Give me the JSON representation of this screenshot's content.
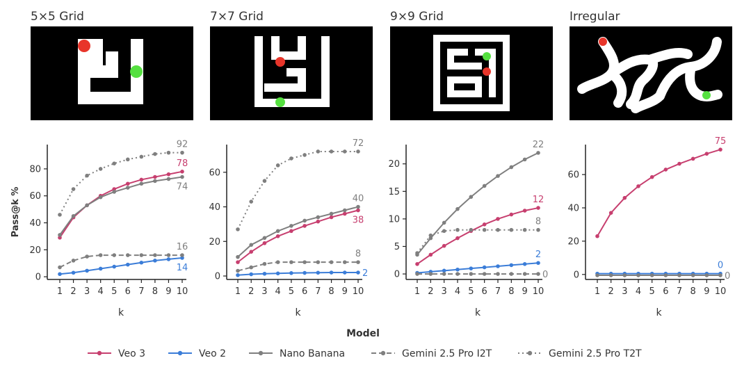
{
  "panels": [
    {
      "title": "5×5 Grid"
    },
    {
      "title": "7×7 Grid"
    },
    {
      "title": "9×9 Grid"
    },
    {
      "title": "Irregular"
    }
  ],
  "colors": {
    "veo3": "#c73f6f",
    "veo2": "#3b7dd8",
    "nano": "#7f7f7f",
    "gemini": "#7f7f7f",
    "start": "#e8352a",
    "goal": "#55e040"
  },
  "shared": {
    "ylabel": "Pass@k %",
    "xlabel": "k",
    "legend_title": "Model"
  },
  "legend": [
    {
      "name": "Veo 3",
      "key": "veo3",
      "dash": "solid"
    },
    {
      "name": "Veo 2",
      "key": "veo2",
      "dash": "solid"
    },
    {
      "name": "Nano Banana",
      "key": "nano",
      "dash": "solid"
    },
    {
      "name": "Gemini 2.5 Pro I2T",
      "key": "gemini",
      "dash": "dashed"
    },
    {
      "name": "Gemini 2.5 Pro T2T",
      "key": "gemini",
      "dash": "dotted"
    }
  ],
  "chart_data": [
    {
      "type": "line",
      "title": "5×5 Grid",
      "xlabel": "k",
      "ylabel": "Pass@k %",
      "x": [
        1,
        2,
        3,
        4,
        5,
        6,
        7,
        8,
        9,
        10
      ],
      "ylim": [
        -2,
        98
      ],
      "yticks": [
        0,
        20,
        40,
        60,
        80
      ],
      "series": [
        {
          "name": "Veo 3",
          "key": "veo3",
          "dash": "solid",
          "values": [
            29,
            44,
            53,
            60,
            65,
            69,
            72,
            74,
            76,
            78
          ],
          "end_label": "78"
        },
        {
          "name": "Veo 2",
          "key": "veo2",
          "dash": "solid",
          "values": [
            2,
            3,
            4.5,
            6,
            7.5,
            9,
            10.5,
            12,
            13,
            14
          ],
          "end_label": "14"
        },
        {
          "name": "Nano Banana",
          "key": "nano",
          "dash": "solid",
          "values": [
            31,
            45,
            53,
            59,
            63,
            66,
            69,
            71,
            72.5,
            74
          ],
          "end_label": "74"
        },
        {
          "name": "Gemini 2.5 Pro I2T",
          "key": "gemini",
          "dash": "dashed",
          "values": [
            7,
            12,
            15,
            16,
            16,
            16,
            16,
            16,
            16,
            16
          ],
          "end_label": "16"
        },
        {
          "name": "Gemini 2.5 Pro T2T",
          "key": "gemini",
          "dash": "dotted",
          "values": [
            46,
            65,
            75,
            80,
            84,
            87,
            89,
            91,
            92,
            92
          ],
          "end_label": "92"
        }
      ]
    },
    {
      "type": "line",
      "title": "7×7 Grid",
      "xlabel": "k",
      "ylabel": "",
      "x": [
        1,
        2,
        3,
        4,
        5,
        6,
        7,
        8,
        9,
        10
      ],
      "ylim": [
        -2,
        76
      ],
      "yticks": [
        0,
        20,
        40,
        60
      ],
      "series": [
        {
          "name": "Veo 3",
          "key": "veo3",
          "dash": "solid",
          "values": [
            8,
            14,
            19,
            23,
            26,
            29,
            31.5,
            34,
            36,
            38
          ],
          "end_label": "38"
        },
        {
          "name": "Veo 2",
          "key": "veo2",
          "dash": "solid",
          "values": [
            0.5,
            1,
            1.3,
            1.5,
            1.7,
            1.8,
            1.9,
            2,
            2,
            2
          ],
          "end_label": "2"
        },
        {
          "name": "Nano Banana",
          "key": "nano",
          "dash": "solid",
          "values": [
            11,
            18,
            22,
            26,
            29,
            32,
            34,
            36,
            38,
            40
          ],
          "end_label": "40"
        },
        {
          "name": "Gemini 2.5 Pro I2T",
          "key": "gemini",
          "dash": "dashed",
          "values": [
            3,
            5,
            7,
            8,
            8,
            8,
            8,
            8,
            8,
            8
          ],
          "end_label": "8"
        },
        {
          "name": "Gemini 2.5 Pro T2T",
          "key": "gemini",
          "dash": "dotted",
          "values": [
            27,
            43,
            55,
            64,
            68,
            70,
            72,
            72,
            72,
            72
          ],
          "end_label": "72"
        }
      ]
    },
    {
      "type": "line",
      "title": "9×9 Grid",
      "xlabel": "k",
      "ylabel": "",
      "x": [
        1,
        2,
        3,
        4,
        5,
        6,
        7,
        8,
        9,
        10
      ],
      "ylim": [
        -1,
        23.5
      ],
      "yticks": [
        0,
        5,
        10,
        15,
        20
      ],
      "series": [
        {
          "name": "Veo 3",
          "key": "veo3",
          "dash": "solid",
          "values": [
            1.8,
            3.5,
            5.1,
            6.5,
            7.8,
            9,
            10,
            10.8,
            11.5,
            12
          ],
          "end_label": "12"
        },
        {
          "name": "Veo 2",
          "key": "veo2",
          "dash": "solid",
          "values": [
            0.2,
            0.4,
            0.6,
            0.8,
            1,
            1.2,
            1.4,
            1.6,
            1.8,
            2
          ],
          "end_label": "2"
        },
        {
          "name": "Nano Banana",
          "key": "nano",
          "dash": "solid",
          "values": [
            3.5,
            6.5,
            9.3,
            11.8,
            14,
            16,
            17.8,
            19.4,
            20.8,
            22
          ],
          "end_label": "22"
        },
        {
          "name": "Gemini 2.5 Pro I2T",
          "key": "gemini",
          "dash": "dashed",
          "values": [
            0,
            0,
            0,
            0,
            0,
            0,
            0,
            0,
            0,
            0
          ],
          "end_label": "0"
        },
        {
          "name": "Gemini 2.5 Pro T2T",
          "key": "gemini",
          "dash": "dotted",
          "values": [
            3.8,
            7,
            7.8,
            8,
            8,
            8,
            8,
            8,
            8,
            8
          ],
          "end_label": "8"
        }
      ]
    },
    {
      "type": "line",
      "title": "Irregular",
      "xlabel": "k",
      "ylabel": "",
      "x": [
        1,
        2,
        3,
        4,
        5,
        6,
        7,
        8,
        9,
        10
      ],
      "ylim": [
        -3,
        78
      ],
      "yticks": [
        0,
        20,
        40,
        60
      ],
      "series": [
        {
          "name": "Veo 3",
          "key": "veo3",
          "dash": "solid",
          "values": [
            23,
            37,
            46,
            53,
            58.5,
            63,
            66.5,
            69.5,
            72.5,
            75
          ],
          "end_label": "75"
        },
        {
          "name": "Veo 2",
          "key": "veo2",
          "dash": "solid",
          "values": [
            0.5,
            0.5,
            0.5,
            0.5,
            0.5,
            0.5,
            0.5,
            0.5,
            0.5,
            0.5
          ],
          "end_label": "0"
        },
        {
          "name": "Nano Banana",
          "key": "nano",
          "dash": "solid",
          "values": [
            -0.5,
            -0.5,
            -0.5,
            -0.5,
            -0.5,
            -0.5,
            -0.5,
            -0.5,
            -0.5,
            -0.5
          ],
          "end_label": "0"
        }
      ]
    }
  ]
}
